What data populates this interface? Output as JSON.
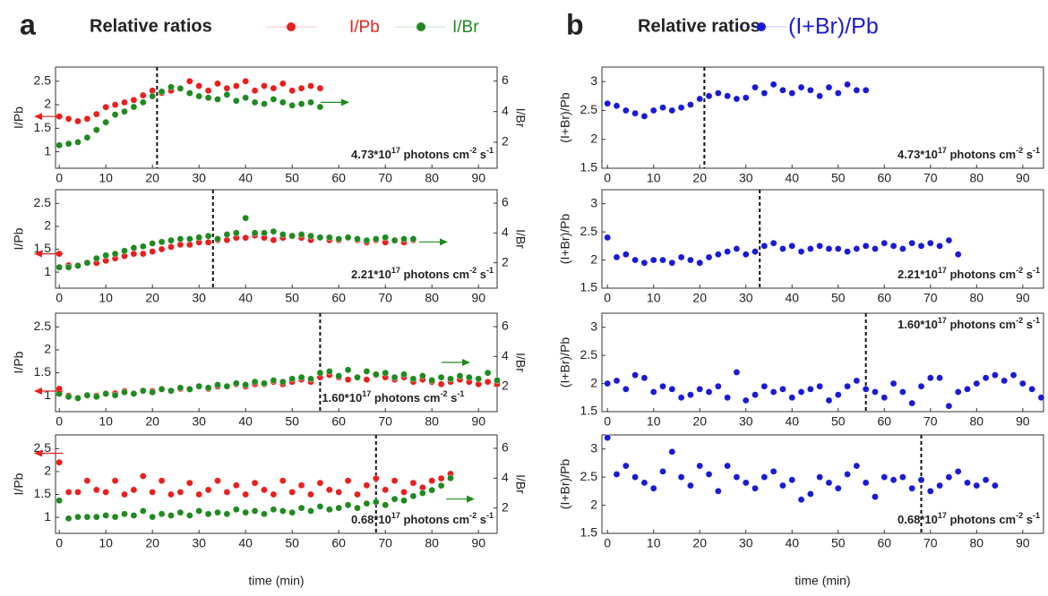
{
  "panels": [
    {
      "label": "a",
      "legend_title": "Relative ratios"
    },
    {
      "label": "b",
      "legend_title": "Relative ratios"
    }
  ],
  "chart_data": [
    {
      "type": "scatter",
      "ylabel": "I/Pb",
      "y2label": "I/Br",
      "xlim": [
        -0.8,
        94
      ],
      "xticks": [
        0,
        10,
        20,
        30,
        40,
        50,
        60,
        70,
        80,
        90
      ],
      "ylim": [
        0.65,
        2.8
      ],
      "yticks": [
        1,
        1.5,
        2,
        2.5
      ],
      "y2lim": [
        0.3,
        6.9
      ],
      "y2ticks": [
        2,
        4,
        6
      ],
      "vline": 21,
      "annotation": [
        "4.73*10",
        "17",
        " photons cm",
        "-2",
        " s",
        "-1"
      ],
      "x": [
        0,
        2,
        4,
        6,
        8,
        10,
        12,
        14,
        16,
        18,
        20,
        22,
        24,
        26,
        28,
        30,
        32,
        34,
        36,
        38,
        40,
        42,
        44,
        46,
        48,
        50,
        52,
        54,
        56
      ],
      "series": [
        {
          "name": "I/Pb",
          "color": "#e8201e",
          "values": [
            1.75,
            1.7,
            1.65,
            1.7,
            1.8,
            1.95,
            2.0,
            2.05,
            2.1,
            2.2,
            2.3,
            2.25,
            2.3,
            2.35,
            2.5,
            2.4,
            2.3,
            2.45,
            2.35,
            2.4,
            2.5,
            2.3,
            2.4,
            2.35,
            2.45,
            2.3,
            2.35,
            2.4,
            2.35
          ]
        },
        {
          "name": "I/Br",
          "color": "#1f8a20",
          "axis": "y2",
          "values": [
            1.8,
            1.9,
            2.0,
            2.3,
            2.8,
            3.3,
            3.8,
            4.0,
            4.3,
            4.6,
            5.0,
            5.3,
            5.6,
            5.5,
            5.2,
            5.0,
            4.9,
            4.8,
            5.1,
            4.7,
            4.9,
            4.6,
            4.5,
            4.8,
            4.6,
            4.4,
            4.5,
            4.6,
            4.3
          ]
        }
      ]
    },
    {
      "type": "scatter",
      "ylabel": "I/Pb",
      "y2label": "I/Br",
      "xlim": [
        -0.8,
        94
      ],
      "xticks": [
        0,
        10,
        20,
        30,
        40,
        50,
        60,
        70,
        80,
        90
      ],
      "ylim": [
        0.65,
        2.8
      ],
      "yticks": [
        1,
        1.5,
        2,
        2.5
      ],
      "y2lim": [
        0.3,
        6.9
      ],
      "y2ticks": [
        2,
        4,
        6
      ],
      "vline": 33,
      "annotation": [
        "2.21*10",
        "17",
        " photons cm",
        "-2",
        " s",
        "-1"
      ],
      "x": [
        0,
        2,
        4,
        6,
        8,
        10,
        12,
        14,
        16,
        18,
        20,
        22,
        24,
        26,
        28,
        30,
        32,
        34,
        36,
        38,
        40,
        42,
        44,
        46,
        48,
        50,
        52,
        54,
        56,
        58,
        60,
        62,
        64,
        66,
        68,
        70,
        72,
        74,
        76
      ],
      "series": [
        {
          "name": "I/Pb",
          "color": "#e8201e",
          "values": [
            1.4,
            1.15,
            1.15,
            1.2,
            1.2,
            1.25,
            1.3,
            1.35,
            1.4,
            1.4,
            1.45,
            1.5,
            1.55,
            1.6,
            1.6,
            1.65,
            1.65,
            1.7,
            1.7,
            1.75,
            1.75,
            1.8,
            1.75,
            1.7,
            1.75,
            1.8,
            1.75,
            1.7,
            1.75,
            1.7,
            1.7,
            1.75,
            1.7,
            1.65,
            1.7,
            1.65,
            1.7,
            1.65,
            1.7
          ]
        },
        {
          "name": "I/Br",
          "color": "#1f8a20",
          "axis": "y2",
          "values": [
            1.7,
            1.7,
            1.8,
            2.0,
            2.3,
            2.5,
            2.6,
            2.8,
            3.0,
            3.1,
            3.3,
            3.4,
            3.5,
            3.6,
            3.6,
            3.7,
            3.8,
            3.6,
            3.9,
            4.0,
            5.0,
            4.0,
            4.0,
            4.1,
            3.9,
            3.8,
            3.9,
            3.8,
            3.7,
            3.7,
            3.6,
            3.7,
            3.6,
            3.5,
            3.6,
            3.7,
            3.5,
            3.6,
            3.6
          ]
        }
      ]
    },
    {
      "type": "scatter",
      "ylabel": "I/Pb",
      "y2label": "I/Br",
      "xlim": [
        -0.8,
        94
      ],
      "xticks": [
        0,
        10,
        20,
        30,
        40,
        50,
        60,
        70,
        80,
        90
      ],
      "ylim": [
        0.65,
        2.8
      ],
      "yticks": [
        1,
        1.5,
        2,
        2.5
      ],
      "y2lim": [
        0.3,
        6.9
      ],
      "y2ticks": [
        2,
        4,
        6
      ],
      "vline": 56,
      "annotation": [
        "1.60*10",
        "17",
        " photons cm",
        "-2",
        " s",
        "-1"
      ],
      "x": [
        0,
        2,
        4,
        6,
        8,
        10,
        12,
        14,
        16,
        18,
        20,
        22,
        24,
        26,
        28,
        30,
        32,
        34,
        36,
        38,
        40,
        42,
        44,
        46,
        48,
        50,
        52,
        54,
        56,
        58,
        60,
        62,
        64,
        66,
        68,
        70,
        72,
        74,
        76,
        78,
        80,
        82,
        84,
        86,
        88,
        90,
        92,
        94
      ],
      "series": [
        {
          "name": "I/Pb",
          "color": "#e8201e",
          "values": [
            1.15,
            1.0,
            0.95,
            1.0,
            1.0,
            1.05,
            1.05,
            1.1,
            1.05,
            1.1,
            1.1,
            1.15,
            1.1,
            1.15,
            1.15,
            1.2,
            1.15,
            1.2,
            1.2,
            1.25,
            1.2,
            1.25,
            1.25,
            1.3,
            1.25,
            1.3,
            1.35,
            1.3,
            1.4,
            1.45,
            1.4,
            1.35,
            1.4,
            1.35,
            1.45,
            1.4,
            1.35,
            1.4,
            1.3,
            1.35,
            1.3,
            1.25,
            1.3,
            1.35,
            1.3,
            1.25,
            1.3,
            1.25
          ]
        },
        {
          "name": "I/Br",
          "color": "#1f8a20",
          "axis": "y2",
          "values": [
            1.5,
            1.3,
            1.2,
            1.4,
            1.3,
            1.5,
            1.4,
            1.6,
            1.5,
            1.7,
            1.6,
            1.8,
            1.7,
            1.9,
            1.8,
            2.0,
            1.9,
            2.1,
            2.0,
            2.2,
            2.1,
            2.3,
            2.2,
            2.4,
            2.3,
            2.5,
            2.6,
            2.5,
            2.9,
            3.0,
            2.7,
            3.1,
            2.6,
            3.0,
            2.8,
            2.9,
            2.6,
            2.8,
            2.5,
            2.7,
            2.4,
            2.6,
            2.5,
            2.7,
            2.6,
            2.5,
            2.9,
            2.4
          ]
        }
      ]
    },
    {
      "type": "scatter",
      "ylabel": "I/Pb",
      "y2label": "I/Br",
      "xlabel": "time (min)",
      "xlim": [
        -0.8,
        94
      ],
      "xticks": [
        0,
        10,
        20,
        30,
        40,
        50,
        60,
        70,
        80,
        90
      ],
      "ylim": [
        0.65,
        2.8
      ],
      "yticks": [
        1,
        1.5,
        2,
        2.5
      ],
      "y2lim": [
        0.3,
        6.9
      ],
      "y2ticks": [
        2,
        4,
        6
      ],
      "vline": 68,
      "annotation": [
        "0.68*10",
        "17",
        " photons cm",
        "-2",
        " s",
        "-1"
      ],
      "x": [
        0,
        2,
        4,
        6,
        8,
        10,
        12,
        14,
        16,
        18,
        20,
        22,
        24,
        26,
        28,
        30,
        32,
        34,
        36,
        38,
        40,
        42,
        44,
        46,
        48,
        50,
        52,
        54,
        56,
        58,
        60,
        62,
        64,
        66,
        68,
        70,
        72,
        74,
        76,
        78,
        80,
        82,
        84
      ],
      "series": [
        {
          "name": "I/Pb",
          "color": "#e8201e",
          "values": [
            2.2,
            1.55,
            1.55,
            1.8,
            1.6,
            1.55,
            1.8,
            1.5,
            1.6,
            1.9,
            1.55,
            1.8,
            1.5,
            1.55,
            1.75,
            1.5,
            1.6,
            1.8,
            1.55,
            1.7,
            1.5,
            1.75,
            1.6,
            1.5,
            1.8,
            1.55,
            1.7,
            1.5,
            1.75,
            1.6,
            1.55,
            1.8,
            1.5,
            1.7,
            1.85,
            1.6,
            1.8,
            1.55,
            1.75,
            1.65,
            1.8,
            1.85,
            1.95
          ]
        },
        {
          "name": "I/Br",
          "color": "#1f8a20",
          "axis": "y2",
          "values": [
            2.5,
            1.3,
            1.4,
            1.4,
            1.4,
            1.5,
            1.4,
            1.6,
            1.5,
            1.8,
            1.4,
            1.6,
            1.5,
            1.7,
            1.5,
            1.8,
            1.6,
            1.7,
            1.6,
            1.9,
            1.7,
            1.8,
            1.6,
            1.9,
            1.8,
            1.7,
            2.0,
            1.8,
            2.1,
            1.9,
            2.0,
            2.2,
            2.0,
            2.3,
            2.4,
            2.2,
            2.6,
            2.5,
            2.8,
            3.0,
            3.2,
            3.5,
            4.0
          ]
        }
      ]
    },
    {
      "type": "scatter",
      "ylabel": "(I+Br)/Pb",
      "xlim": [
        -1.2,
        94.5
      ],
      "xticks": [
        0,
        10,
        20,
        30,
        40,
        50,
        60,
        70,
        80,
        90
      ],
      "ylim": [
        1.5,
        3.25
      ],
      "yticks": [
        1.5,
        2,
        2.5,
        3
      ],
      "vline": 21,
      "annotation": [
        "4.73*10",
        "17",
        " photons cm",
        "-2",
        " s",
        "-1"
      ],
      "x": [
        0,
        2,
        4,
        6,
        8,
        10,
        12,
        14,
        16,
        18,
        20,
        22,
        24,
        26,
        28,
        30,
        32,
        34,
        36,
        38,
        40,
        42,
        44,
        46,
        48,
        50,
        52,
        54,
        56
      ],
      "series": [
        {
          "name": "(I+Br)/Pb",
          "color": "#1a1ad6",
          "values": [
            2.62,
            2.58,
            2.5,
            2.45,
            2.4,
            2.5,
            2.55,
            2.5,
            2.55,
            2.6,
            2.7,
            2.75,
            2.8,
            2.75,
            2.7,
            2.72,
            2.9,
            2.8,
            2.95,
            2.85,
            2.8,
            2.9,
            2.85,
            2.75,
            2.9,
            2.8,
            2.95,
            2.85,
            2.85
          ]
        }
      ]
    },
    {
      "type": "scatter",
      "ylabel": "(I+Br)/Pb",
      "xlim": [
        -1.2,
        94.5
      ],
      "xticks": [
        0,
        10,
        20,
        30,
        40,
        50,
        60,
        70,
        80,
        90
      ],
      "ylim": [
        1.5,
        3.25
      ],
      "yticks": [
        1.5,
        2,
        2.5,
        3
      ],
      "vline": 33,
      "annotation": [
        "2.21*10",
        "17",
        " photons cm",
        "-2",
        " s",
        "-1"
      ],
      "x": [
        0,
        2,
        4,
        6,
        8,
        10,
        12,
        14,
        16,
        18,
        20,
        22,
        24,
        26,
        28,
        30,
        32,
        34,
        36,
        38,
        40,
        42,
        44,
        46,
        48,
        50,
        52,
        54,
        56,
        58,
        60,
        62,
        64,
        66,
        68,
        70,
        72,
        74,
        76
      ],
      "series": [
        {
          "name": "(I+Br)/Pb",
          "color": "#1a1ad6",
          "values": [
            2.4,
            2.05,
            2.1,
            2.0,
            1.95,
            2.0,
            2.0,
            1.95,
            2.05,
            2.0,
            1.95,
            2.05,
            2.1,
            2.15,
            2.2,
            2.1,
            2.15,
            2.25,
            2.3,
            2.2,
            2.25,
            2.15,
            2.2,
            2.25,
            2.2,
            2.2,
            2.15,
            2.2,
            2.25,
            2.2,
            2.3,
            2.25,
            2.2,
            2.3,
            2.25,
            2.3,
            2.25,
            2.35,
            2.1
          ]
        }
      ]
    },
    {
      "type": "scatter",
      "ylabel": "(I+Br)/Pb",
      "xlim": [
        -1.2,
        94.5
      ],
      "xticks": [
        0,
        10,
        20,
        30,
        40,
        50,
        60,
        70,
        80,
        90
      ],
      "ylim": [
        1.5,
        3.25
      ],
      "yticks": [
        1.5,
        2,
        2.5,
        3
      ],
      "vline": 56,
      "annotation": [
        "1.60*10",
        "17",
        " photons cm",
        "-2",
        " s",
        "-1"
      ],
      "x": [
        0,
        2,
        4,
        6,
        8,
        10,
        12,
        14,
        16,
        18,
        20,
        22,
        24,
        26,
        28,
        30,
        32,
        34,
        36,
        38,
        40,
        42,
        44,
        46,
        48,
        50,
        52,
        54,
        56,
        58,
        60,
        62,
        64,
        66,
        68,
        70,
        72,
        74,
        76,
        78,
        80,
        82,
        84,
        86,
        88,
        90,
        92,
        94
      ],
      "series": [
        {
          "name": "(I+Br)/Pb",
          "color": "#1a1ad6",
          "values": [
            2.0,
            2.05,
            1.9,
            2.15,
            2.1,
            1.85,
            1.95,
            1.9,
            1.75,
            1.8,
            1.9,
            1.85,
            1.95,
            1.75,
            2.2,
            1.7,
            1.8,
            1.95,
            1.85,
            1.9,
            1.75,
            1.85,
            1.9,
            1.95,
            1.7,
            1.8,
            1.95,
            2.05,
            1.9,
            1.85,
            1.75,
            2.0,
            1.85,
            1.65,
            1.95,
            2.1,
            2.1,
            1.6,
            1.85,
            1.9,
            2.0,
            2.1,
            2.15,
            2.05,
            2.15,
            2.0,
            1.9,
            1.75
          ]
        }
      ]
    },
    {
      "type": "scatter",
      "ylabel": "(I+Br)/Pb",
      "xlabel": "time (min)",
      "xlim": [
        -1.2,
        94.5
      ],
      "xticks": [
        0,
        10,
        20,
        30,
        40,
        50,
        60,
        70,
        80,
        90
      ],
      "ylim": [
        1.5,
        3.25
      ],
      "yticks": [
        1.5,
        2,
        2.5,
        3
      ],
      "vline": 68,
      "annotation": [
        "0.68*10",
        "17",
        " photons cm",
        "-2",
        " s",
        "-1"
      ],
      "x": [
        0,
        2,
        4,
        6,
        8,
        10,
        12,
        14,
        16,
        18,
        20,
        22,
        24,
        26,
        28,
        30,
        32,
        34,
        36,
        38,
        40,
        42,
        44,
        46,
        48,
        50,
        52,
        54,
        56,
        58,
        60,
        62,
        64,
        66,
        68,
        70,
        72,
        74,
        76,
        78,
        80,
        82,
        84
      ],
      "series": [
        {
          "name": "(I+Br)/Pb",
          "color": "#1a1ad6",
          "values": [
            3.2,
            2.55,
            2.7,
            2.5,
            2.4,
            2.3,
            2.6,
            2.95,
            2.5,
            2.35,
            2.7,
            2.55,
            2.25,
            2.7,
            2.5,
            2.4,
            2.3,
            2.5,
            2.6,
            2.35,
            2.45,
            2.1,
            2.2,
            2.5,
            2.4,
            2.3,
            2.55,
            2.7,
            2.4,
            2.15,
            2.5,
            2.45,
            2.5,
            2.3,
            2.45,
            2.25,
            2.35,
            2.5,
            2.6,
            2.4,
            2.35,
            2.45,
            2.35
          ]
        }
      ]
    }
  ]
}
